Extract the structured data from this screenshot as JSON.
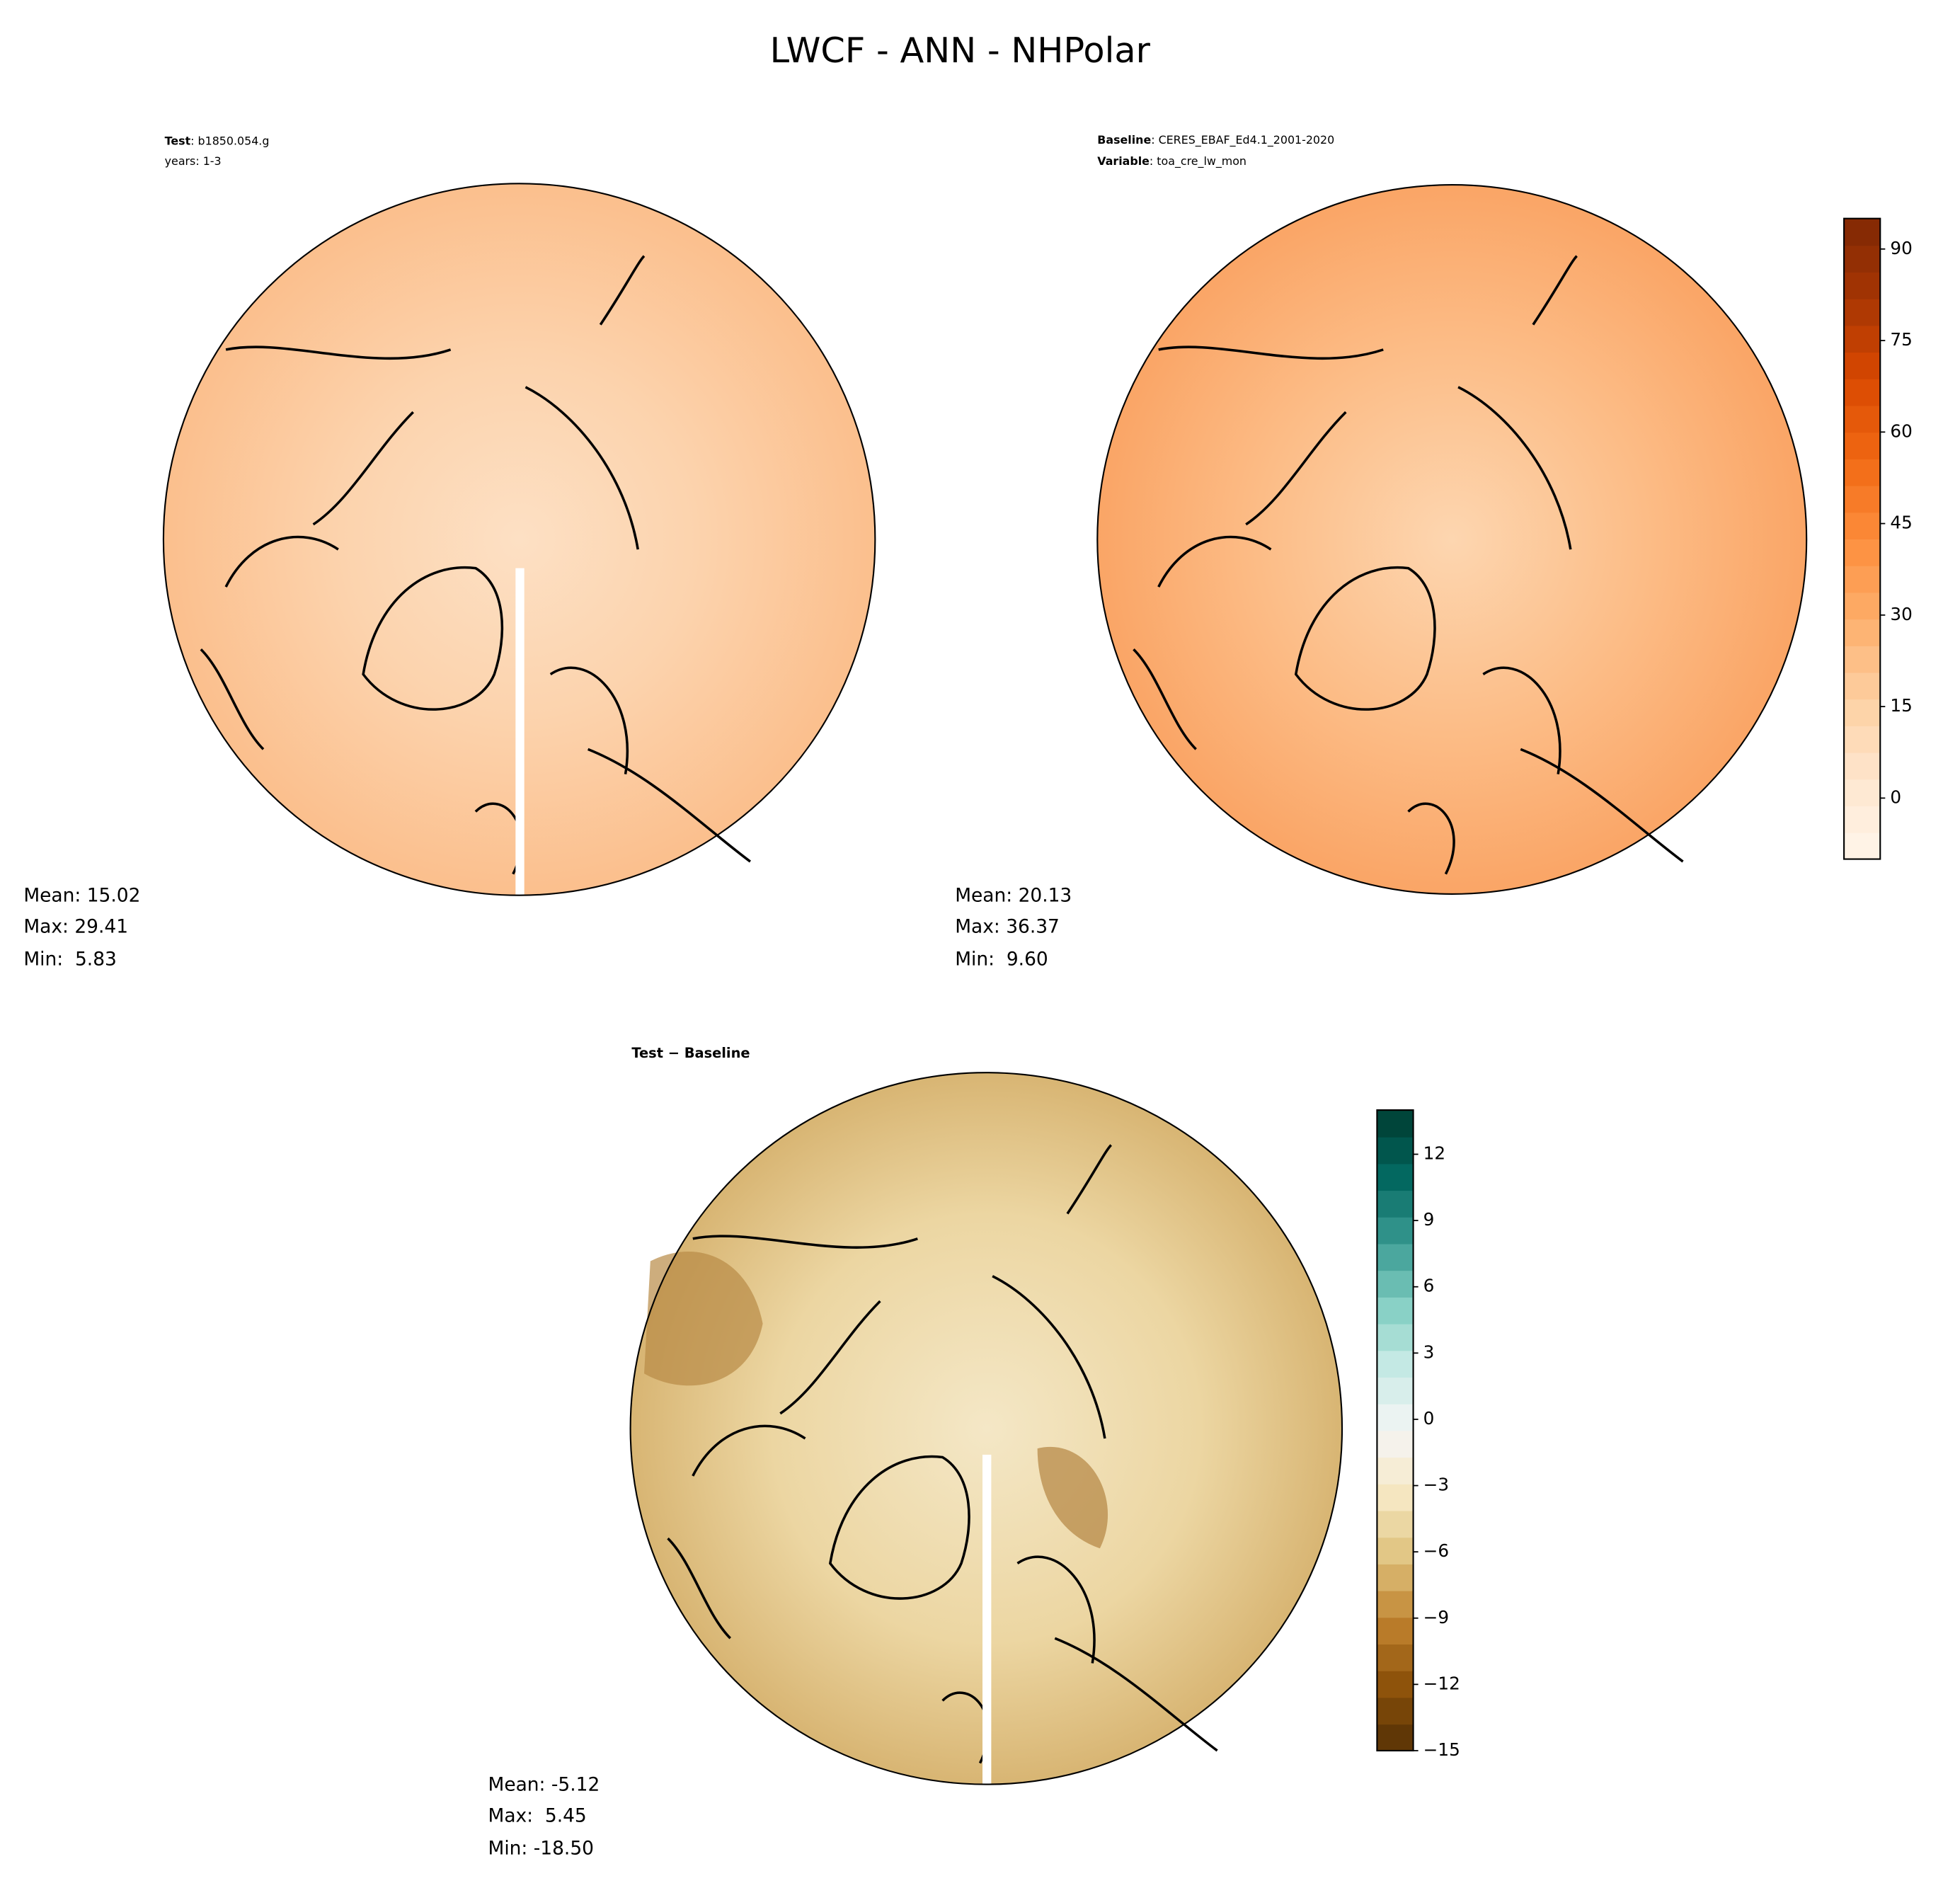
{
  "title": "LWCF - ANN - NHPolar",
  "test": {
    "label": "Test",
    "name": ": b1850.054.g",
    "years": "years: 1-3",
    "stats": [
      "Mean: 15.02",
      "Max: 29.41",
      "Min:  5.83"
    ]
  },
  "baseline": {
    "label": "Baseline",
    "name": ": CERES_EBAF_Ed4.1_2001-2020",
    "variable_label": "Variable",
    "variable": ": toa_cre_lw_mon",
    "stats": [
      "Mean: 20.13",
      "Max: 36.37",
      "Min:  9.60"
    ]
  },
  "difference": {
    "label": "Test − Baseline",
    "stats": [
      "Mean: -5.12",
      "Max:  5.45",
      "Min: -18.50"
    ]
  },
  "colorbars": [
    {
      "lim": [
        -10,
        95
      ],
      "ticks": [
        0,
        15,
        30,
        45,
        60,
        75,
        90
      ],
      "colors": [
        "#fff5eb",
        "#fee6ce",
        "#fdd0a2",
        "#fdae6b",
        "#fd8d3c",
        "#f16913",
        "#d94801",
        "#a63603",
        "#7f2704"
      ]
    },
    {
      "lim": [
        -15,
        14
      ],
      "ticks": [
        {
          "value": -15,
          "label": "−15"
        },
        {
          "value": -12,
          "label": "−12"
        },
        {
          "value": -9,
          "label": "−9"
        },
        {
          "value": -6,
          "label": "−6"
        },
        {
          "value": -3,
          "label": "−3"
        },
        0,
        3,
        6,
        9,
        12
      ],
      "colors": [
        "#543005",
        "#8c510a",
        "#bf812d",
        "#dfc27d",
        "#f6e8c3",
        "#f5f5f5",
        "#c7eae5",
        "#80cdc1",
        "#35978f",
        "#01665e",
        "#003c30"
      ]
    }
  ]
}
